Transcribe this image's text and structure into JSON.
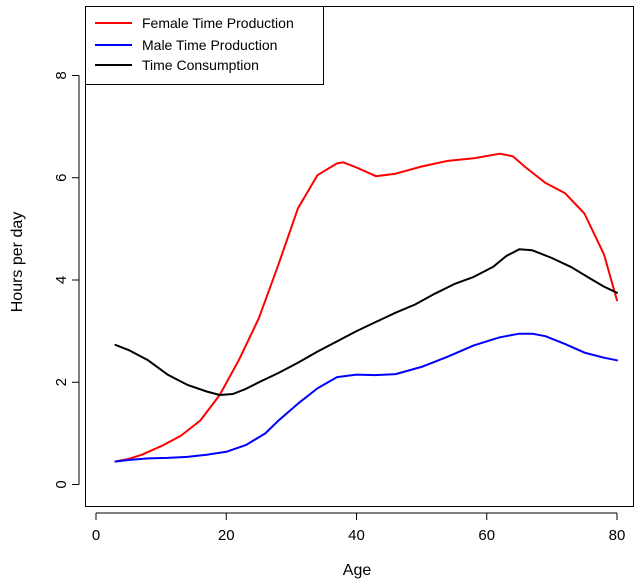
{
  "chart_data": {
    "type": "line",
    "title": "",
    "xlabel": "Age",
    "ylabel": "Hours per day",
    "xlim": [
      0,
      80
    ],
    "ylim": [
      0,
      9
    ],
    "x_ticks": [
      0,
      20,
      40,
      60,
      80
    ],
    "x_tick_labels": [
      "0",
      "20",
      "40",
      "60",
      "80"
    ],
    "y_ticks": [
      0,
      2,
      4,
      6,
      8
    ],
    "y_tick_labels": [
      "0",
      "2",
      "4",
      "6",
      "8"
    ],
    "grid": false,
    "legend_position": "top-left",
    "series": [
      {
        "name": "Female Time Production",
        "color": "#ff0000",
        "x": [
          3,
          5,
          7,
          10,
          13,
          16,
          19,
          22,
          25,
          28,
          31,
          34,
          37,
          38,
          40,
          43,
          46,
          50,
          54,
          58,
          62,
          64,
          66,
          69,
          72,
          75,
          78,
          80
        ],
        "y": [
          0.45,
          0.5,
          0.58,
          0.75,
          0.95,
          1.25,
          1.75,
          2.45,
          3.25,
          4.3,
          5.4,
          6.05,
          6.28,
          6.3,
          6.2,
          6.03,
          6.08,
          6.22,
          6.33,
          6.38,
          6.47,
          6.42,
          6.2,
          5.9,
          5.7,
          5.3,
          4.5,
          3.6
        ]
      },
      {
        "name": "Male Time Production",
        "color": "#0000ff",
        "x": [
          3,
          5,
          8,
          11,
          14,
          17,
          20,
          23,
          26,
          28,
          31,
          34,
          37,
          40,
          43,
          46,
          50,
          54,
          58,
          62,
          65,
          67,
          69,
          72,
          75,
          78,
          80
        ],
        "y": [
          0.45,
          0.48,
          0.51,
          0.52,
          0.54,
          0.58,
          0.64,
          0.77,
          1.0,
          1.25,
          1.58,
          1.88,
          2.1,
          2.15,
          2.14,
          2.16,
          2.3,
          2.5,
          2.72,
          2.88,
          2.95,
          2.95,
          2.9,
          2.75,
          2.58,
          2.48,
          2.43
        ]
      },
      {
        "name": "Time Consumption",
        "color": "#000000",
        "x": [
          3,
          5,
          8,
          11,
          14,
          17,
          19,
          21,
          23,
          25,
          28,
          31,
          34,
          37,
          40,
          43,
          46,
          49,
          52,
          55,
          58,
          61,
          63,
          65,
          67,
          70,
          73,
          76,
          78,
          80
        ],
        "y": [
          2.73,
          2.63,
          2.43,
          2.15,
          1.95,
          1.82,
          1.75,
          1.77,
          1.87,
          2.0,
          2.18,
          2.38,
          2.6,
          2.8,
          3.0,
          3.18,
          3.36,
          3.52,
          3.73,
          3.92,
          4.06,
          4.26,
          4.47,
          4.6,
          4.58,
          4.43,
          4.25,
          4.02,
          3.87,
          3.75
        ]
      }
    ]
  }
}
